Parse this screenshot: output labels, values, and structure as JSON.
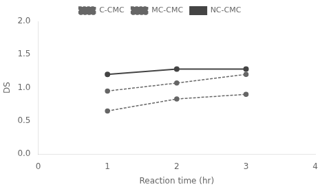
{
  "chart_data": {
    "type": "line",
    "x": [
      1,
      2,
      3
    ],
    "series": [
      {
        "name": "C-CMC",
        "color": "#666666",
        "line_style": "dashed",
        "marker": "circle",
        "values": [
          0.65,
          0.83,
          0.9
        ]
      },
      {
        "name": "MC-CMC",
        "color": "#666666",
        "line_style": "dashed",
        "marker": "circle",
        "values": [
          0.95,
          1.07,
          1.2
        ]
      },
      {
        "name": "NC-CMC",
        "color": "#444444",
        "line_style": "solid",
        "marker": "circle",
        "values": [
          1.2,
          1.28,
          1.28
        ]
      }
    ],
    "xlabel": "Reaction time (hr)",
    "ylabel": "DS",
    "xlim": [
      0,
      4
    ],
    "ylim": [
      0.0,
      2.0
    ],
    "xticks": [
      0,
      1,
      2,
      3,
      4
    ],
    "yticks": [
      {
        "value": 0,
        "label": "0.0"
      },
      0.5,
      {
        "value": 1,
        "label": "1.0"
      },
      1.5,
      {
        "value": 2,
        "label": "2.0"
      }
    ],
    "legend": "top",
    "grid": false
  }
}
